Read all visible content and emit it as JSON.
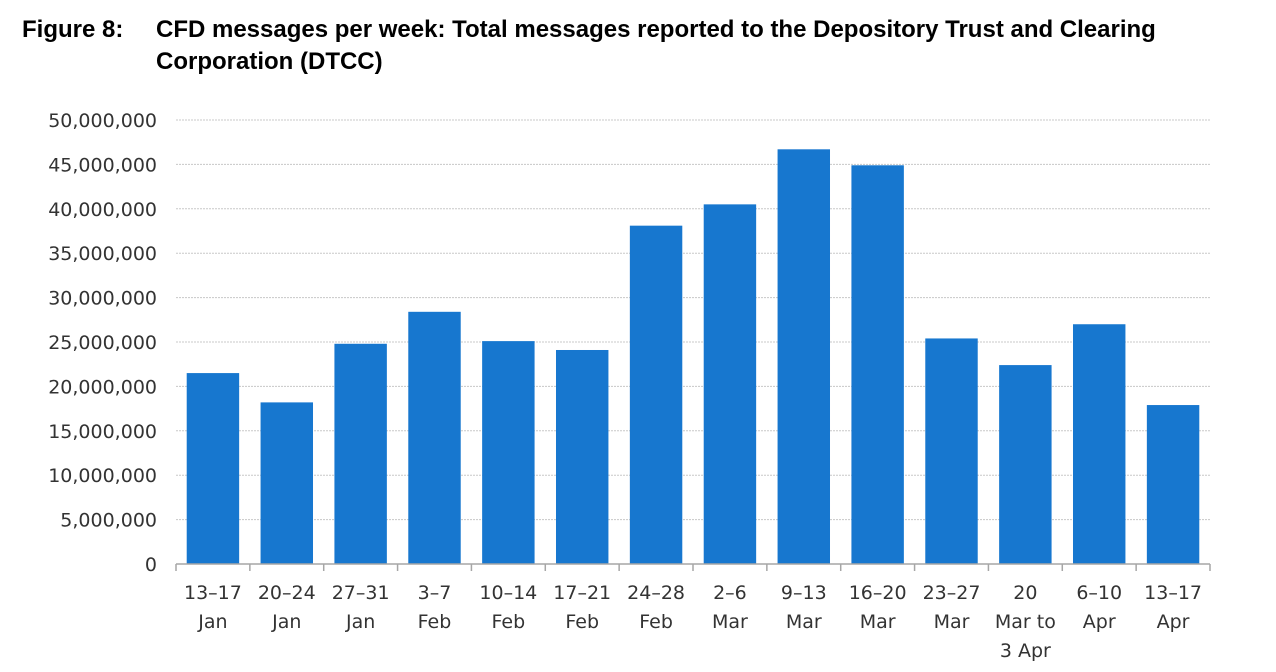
{
  "figure": {
    "number": "Figure 8:",
    "title": "CFD messages per week: Total messages reported to the Depository Trust and Clearing Corporation (DTCC)"
  },
  "chart_data": {
    "type": "bar",
    "title": "",
    "xlabel": "",
    "ylabel": "",
    "ylim": [
      0,
      50000000
    ],
    "yticks": [
      "0",
      "5,000,000",
      "10,000,000",
      "15,000,000",
      "20,000,000",
      "25,000,000",
      "30,000,000",
      "35,000,000",
      "40,000,000",
      "45,000,000",
      "50,000,000"
    ],
    "grid": true,
    "bar_color": "#1777CF",
    "categories": [
      [
        "13–17",
        "Jan"
      ],
      [
        "20–24",
        "Jan"
      ],
      [
        "27–31",
        "Jan"
      ],
      [
        "3–7",
        "Feb"
      ],
      [
        "10–14",
        "Feb"
      ],
      [
        "17–21",
        "Feb"
      ],
      [
        "24–28",
        "Feb"
      ],
      [
        "2–6",
        "Mar"
      ],
      [
        "9–13",
        "Mar"
      ],
      [
        "16–20",
        "Mar"
      ],
      [
        "23–27",
        "Mar"
      ],
      [
        "20",
        "Mar to",
        "3 Apr"
      ],
      [
        "6–10",
        "Apr"
      ],
      [
        "13–17",
        "Apr"
      ]
    ],
    "values": [
      21500000,
      18200000,
      24800000,
      28400000,
      25100000,
      24100000,
      38100000,
      40500000,
      46700000,
      44900000,
      25400000,
      22400000,
      27000000,
      17900000
    ]
  }
}
